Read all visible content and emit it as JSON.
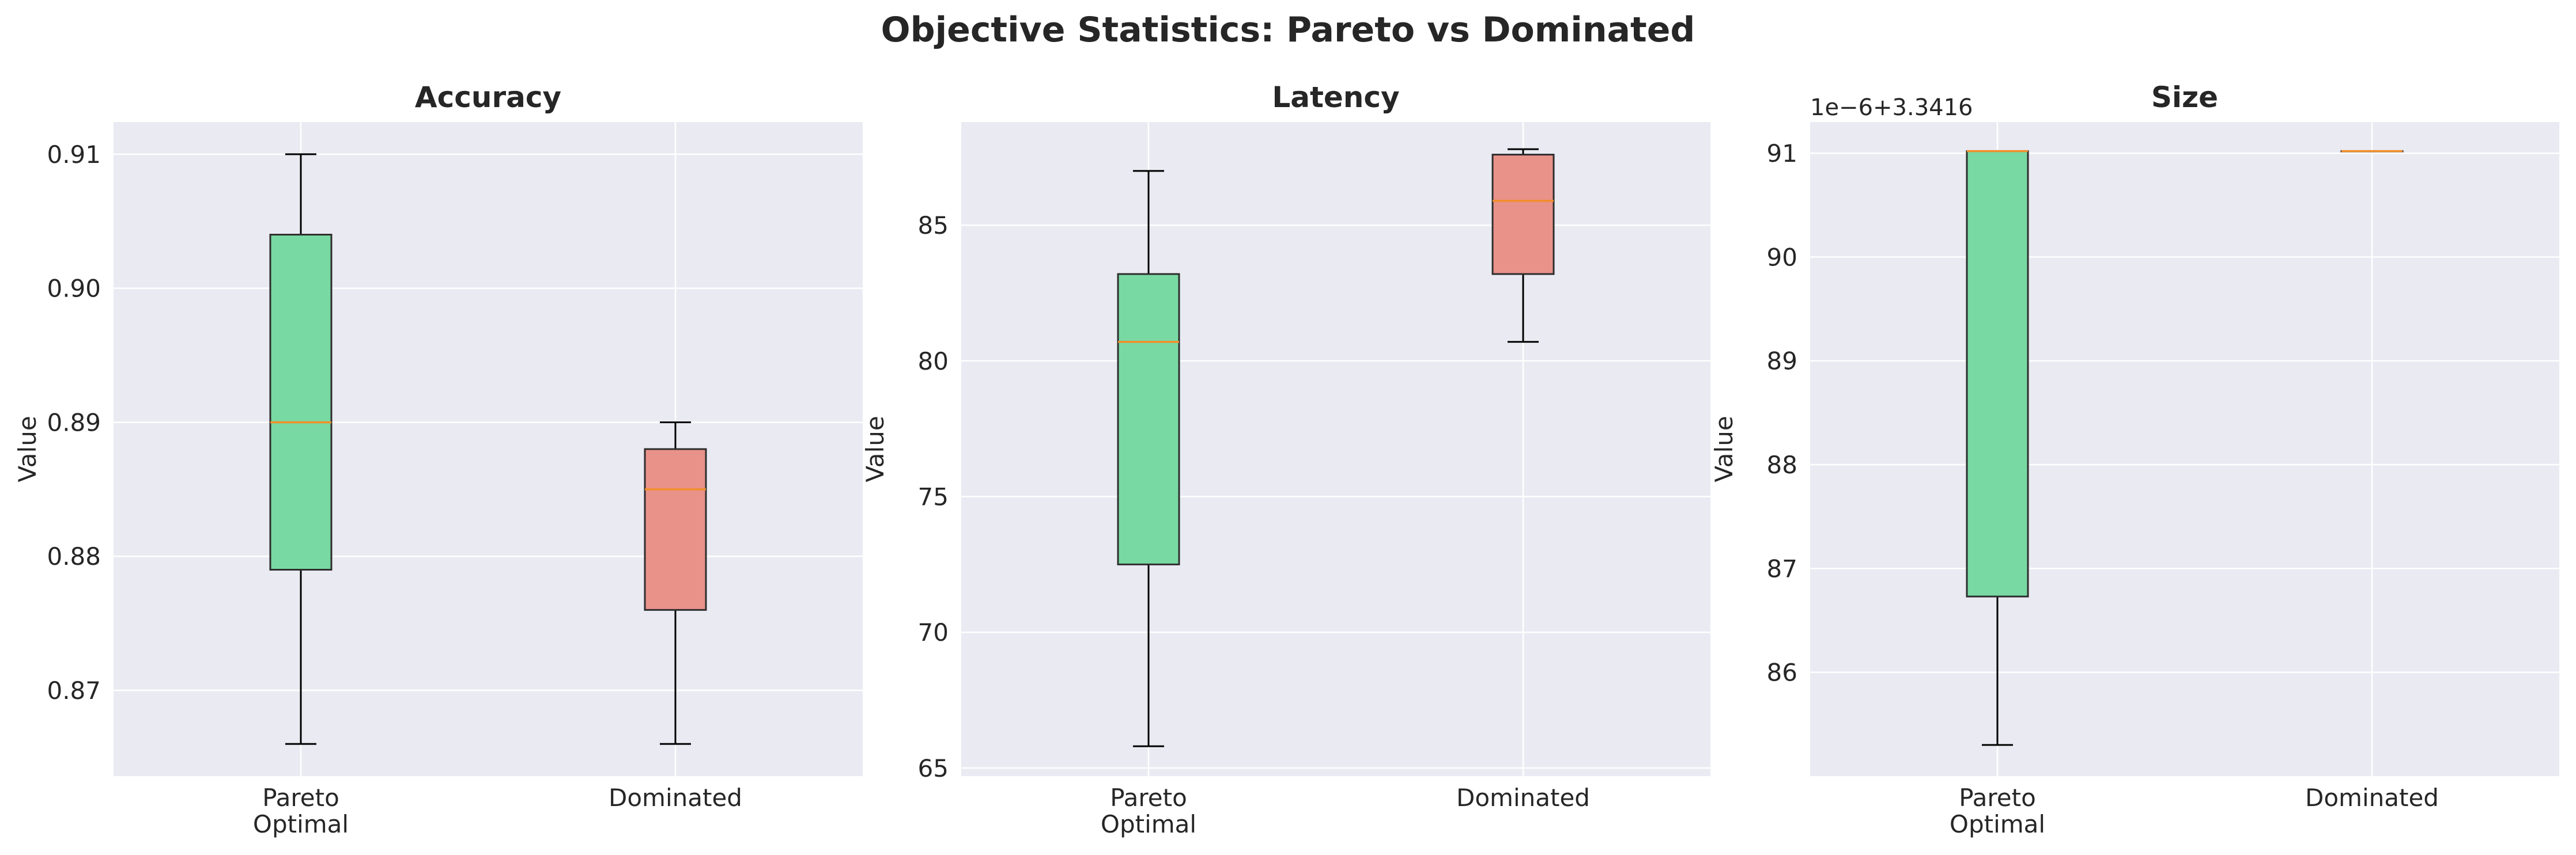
{
  "suptitle": "Objective Statistics: Pareto vs Dominated",
  "colors": {
    "axes_bg": "#eaeaf2",
    "grid": "#ffffff",
    "pareto_box": "#79d9a3",
    "dominated_box": "#e8928a",
    "median": "#f28e2b",
    "whisker": "#000000",
    "box_edge": "#2d2d2d"
  },
  "chart_data": [
    {
      "type": "box",
      "title": "Accuracy",
      "ylabel": "Value",
      "categories": [
        "Pareto\nOptimal",
        "Dominated"
      ],
      "ylim": [
        0.8636,
        0.9124
      ],
      "yticks": [
        0.87,
        0.88,
        0.89,
        0.9,
        0.91
      ],
      "ytick_labels": [
        "0.87",
        "0.88",
        "0.89",
        "0.90",
        "0.91"
      ],
      "offset_text": "",
      "boxes": [
        {
          "name": "Pareto Optimal",
          "whislo": 0.866,
          "q1": 0.879,
          "med": 0.89,
          "q3": 0.904,
          "whishi": 0.91
        },
        {
          "name": "Dominated",
          "whislo": 0.866,
          "q1": 0.876,
          "med": 0.885,
          "q3": 0.888,
          "whishi": 0.89
        }
      ]
    },
    {
      "type": "box",
      "title": "Latency",
      "ylabel": "Value",
      "categories": [
        "Pareto\nOptimal",
        "Dominated"
      ],
      "ylim": [
        64.7,
        88.8
      ],
      "yticks": [
        65,
        70,
        75,
        80,
        85
      ],
      "ytick_labels": [
        "65",
        "70",
        "75",
        "80",
        "85"
      ],
      "offset_text": "",
      "boxes": [
        {
          "name": "Pareto Optimal",
          "whislo": 65.8,
          "q1": 72.5,
          "med": 80.7,
          "q3": 83.2,
          "whishi": 87.0
        },
        {
          "name": "Dominated",
          "whislo": 80.7,
          "q1": 83.2,
          "med": 85.9,
          "q3": 87.6,
          "whishi": 87.8
        }
      ]
    },
    {
      "type": "box",
      "title": "Size",
      "ylabel": "Value",
      "categories": [
        "Pareto\nOptimal",
        "Dominated"
      ],
      "ylim": [
        85.0,
        91.3
      ],
      "yticks": [
        86,
        87,
        88,
        89,
        90,
        91
      ],
      "ytick_labels": [
        "86",
        "87",
        "88",
        "89",
        "90",
        "91"
      ],
      "offset_text": "1e−6+3.3416",
      "boxes": [
        {
          "name": "Pareto Optimal",
          "whislo": 85.3,
          "q1": 86.73,
          "med": 91.02,
          "q3": 91.02,
          "whishi": 91.02
        },
        {
          "name": "Dominated",
          "whislo": 91.02,
          "q1": 91.02,
          "med": 91.02,
          "q3": 91.02,
          "whishi": 91.02
        }
      ]
    }
  ]
}
